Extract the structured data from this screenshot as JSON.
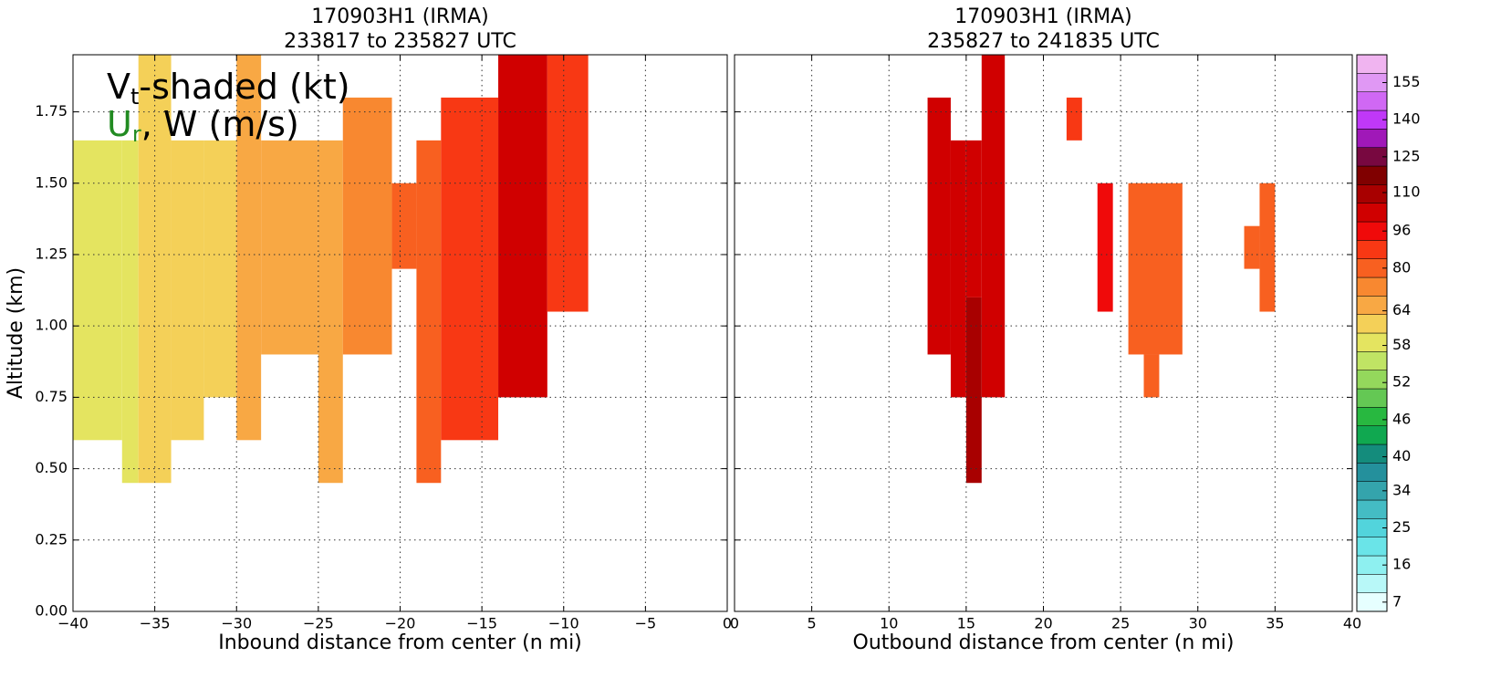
{
  "chart_data": [
    {
      "type": "heatmap",
      "title": [
        "170903H1 (IRMA)",
        "233817 to 235827 UTC"
      ],
      "xlabel": "Inbound distance from center (n mi)",
      "ylabel": "Altitude (km)",
      "annotation": [
        [
          "V",
          "t",
          "-shaded (kt)"
        ],
        [
          "U",
          "r",
          ", W (m/s)"
        ]
      ],
      "xlim": [
        -40,
        0
      ],
      "ylim": [
        0,
        1.95
      ],
      "xticks": [
        {
          "value": -40,
          "label": "−40"
        },
        {
          "value": -35,
          "label": "−35"
        },
        {
          "value": -30,
          "label": "−30"
        },
        {
          "value": -25,
          "label": "−25"
        },
        {
          "value": -20,
          "label": "−20"
        },
        {
          "value": -15,
          "label": "−15"
        },
        {
          "value": -10,
          "label": "−10"
        },
        {
          "value": -5,
          "label": "−5"
        },
        0
      ],
      "yticks": [
        {
          "value": 0,
          "label": "0.00"
        },
        {
          "value": 0.25,
          "label": "0.25"
        },
        {
          "value": 0.5,
          "label": "0.50"
        },
        {
          "value": 0.75,
          "label": "0.75"
        },
        {
          "value": 1,
          "label": "1.00"
        },
        {
          "value": 1.25,
          "label": "1.25"
        },
        {
          "value": 1.5,
          "label": "1.50"
        },
        {
          "value": 1.75,
          "label": "1.75"
        }
      ],
      "grid": true,
      "cells": [
        {
          "x": [
            -40,
            -37
          ],
          "y": [
            0.6,
            1.65
          ],
          "value": 57
        },
        {
          "x": [
            -37,
            -36
          ],
          "y": [
            0.45,
            1.65
          ],
          "value": 57
        },
        {
          "x": [
            -36,
            -34
          ],
          "y": [
            0.45,
            1.95
          ],
          "value": 62
        },
        {
          "x": [
            -34,
            -32
          ],
          "y": [
            0.6,
            1.65
          ],
          "value": 60
        },
        {
          "x": [
            -32,
            -30
          ],
          "y": [
            0.75,
            1.65
          ],
          "value": 62
        },
        {
          "x": [
            -30,
            -28.5
          ],
          "y": [
            0.6,
            1.95
          ],
          "value": 63
        },
        {
          "x": [
            -28.5,
            -25
          ],
          "y": [
            0.9,
            1.65
          ],
          "value": 66
        },
        {
          "x": [
            -25,
            -23.5
          ],
          "y": [
            0.45,
            1.65
          ],
          "value": 66
        },
        {
          "x": [
            -23.5,
            -20.5
          ],
          "y": [
            0.9,
            1.8
          ],
          "value": 72
        },
        {
          "x": [
            -20.5,
            -19
          ],
          "y": [
            1.2,
            1.5
          ],
          "value": 78
        },
        {
          "x": [
            -19,
            -17.5
          ],
          "y": [
            0.45,
            1.65
          ],
          "value": 82
        },
        {
          "x": [
            -17.5,
            -14
          ],
          "y": [
            0.6,
            1.8
          ],
          "value": 90
        },
        {
          "x": [
            -14,
            -11
          ],
          "y": [
            0.75,
            1.95
          ],
          "value": 100
        },
        {
          "x": [
            -11,
            -8.5
          ],
          "y": [
            1.05,
            1.95
          ],
          "value": 84
        }
      ]
    },
    {
      "type": "heatmap",
      "title": [
        "170903H1 (IRMA)",
        "235827 to 241835 UTC"
      ],
      "xlabel": "Outbound distance from center (n mi)",
      "xlim": [
        0,
        40
      ],
      "ylim": [
        0,
        1.95
      ],
      "xticks": [
        0,
        5,
        10,
        15,
        20,
        25,
        30,
        35,
        40
      ],
      "yticks": [
        0,
        0.25,
        0.5,
        0.75,
        1,
        1.25,
        1.5,
        1.75
      ],
      "ytick_labels": false,
      "grid": true,
      "cells": [
        {
          "x": [
            12.5,
            14
          ],
          "y": [
            0.9,
            1.8
          ],
          "value": 100
        },
        {
          "x": [
            14,
            15
          ],
          "y": [
            0.75,
            1.65
          ],
          "value": 104
        },
        {
          "x": [
            15,
            16
          ],
          "y": [
            0.45,
            1.1
          ],
          "value": 112
        },
        {
          "x": [
            15,
            16
          ],
          "y": [
            1.1,
            1.65
          ],
          "value": 104
        },
        {
          "x": [
            16,
            17.5
          ],
          "y": [
            0.75,
            1.95
          ],
          "value": 100
        },
        {
          "x": [
            21.5,
            22.5
          ],
          "y": [
            1.65,
            1.8
          ],
          "value": 90
        },
        {
          "x": [
            23.5,
            24.5
          ],
          "y": [
            1.05,
            1.5
          ],
          "value": 95
        },
        {
          "x": [
            25.5,
            29
          ],
          "y": [
            0.9,
            1.5
          ],
          "value": 80
        },
        {
          "x": [
            26.5,
            27.5
          ],
          "y": [
            0.75,
            0.9
          ],
          "value": 80
        },
        {
          "x": [
            33,
            34
          ],
          "y": [
            1.2,
            1.35
          ],
          "value": 78
        },
        {
          "x": [
            34,
            35
          ],
          "y": [
            1.05,
            1.5
          ],
          "value": 78
        }
      ]
    }
  ],
  "colorbar": {
    "levels": [
      5,
      9,
      14,
      18,
      23,
      27,
      32,
      36,
      39,
      42,
      45,
      48,
      51,
      54,
      57,
      60,
      63,
      68,
      76,
      84,
      92,
      100,
      106,
      113,
      121,
      129,
      136,
      144,
      151,
      159,
      165
    ],
    "colors": [
      "#e6ffff",
      "#b8f8f8",
      "#8ef0f0",
      "#6ae4e8",
      "#52d4dc",
      "#44bcc4",
      "#34a4ac",
      "#24909c",
      "#148c7c",
      "#10a850",
      "#28b840",
      "#64c854",
      "#94d85c",
      "#c0e464",
      "#e4e460",
      "#f4d058",
      "#f8a844",
      "#f88830",
      "#f86020",
      "#f83814",
      "#f00a0a",
      "#d00000",
      "#a80000",
      "#800000",
      "#780840",
      "#a018b8",
      "#c038f8",
      "#d068f4",
      "#e098f4",
      "#f0b4f0"
    ],
    "ticks": [
      7,
      16,
      25,
      34,
      40,
      46,
      52,
      58,
      64,
      80,
      96,
      110,
      125,
      140,
      155
    ]
  }
}
